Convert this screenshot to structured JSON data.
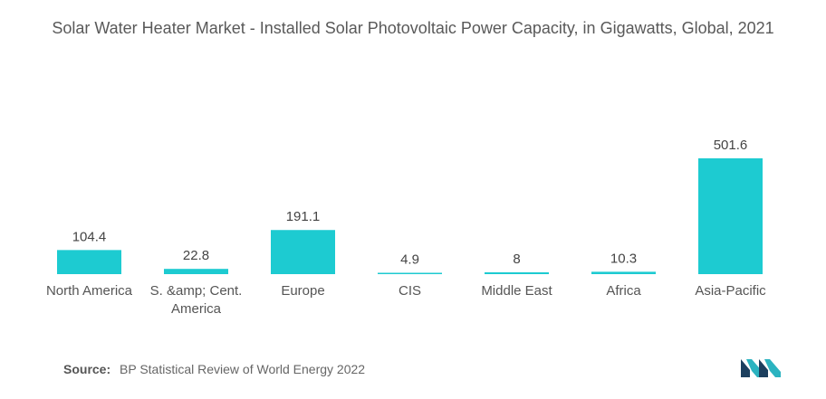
{
  "chart_data": {
    "type": "bar",
    "title": "Solar Water Heater Market - Installed Solar Photovoltaic Power Capacity, in Gigawatts, Global, 2021",
    "categories": [
      "North America",
      "S. &amp; Cent. America",
      "Europe",
      "CIS",
      "Middle East",
      "Africa",
      "Asia-Pacific"
    ],
    "category_lines": [
      [
        "North America"
      ],
      [
        "S. &amp; Cent.",
        "America"
      ],
      [
        "Europe"
      ],
      [
        "CIS"
      ],
      [
        "Middle East"
      ],
      [
        "Africa"
      ],
      [
        "Asia-Pacific"
      ]
    ],
    "values": [
      104.4,
      22.8,
      191.1,
      4.9,
      8,
      10.3,
      501.6
    ],
    "value_labels": [
      "104.4",
      "22.8",
      "191.1",
      "4.9",
      "8",
      "10.3",
      "501.6"
    ],
    "xlabel": "",
    "ylabel": "",
    "ylim": [
      0,
      501.6
    ],
    "grid": false,
    "legend": "none",
    "bar_color": "#1dcbd1"
  },
  "footer": {
    "source_label": "Source:",
    "source_text": "BP Statistical Review of World Energy 2022"
  },
  "logo": {
    "icon": "mordor-intelligence-logo-icon",
    "colors": [
      "#1c3f5e",
      "#2bb3c0"
    ]
  }
}
